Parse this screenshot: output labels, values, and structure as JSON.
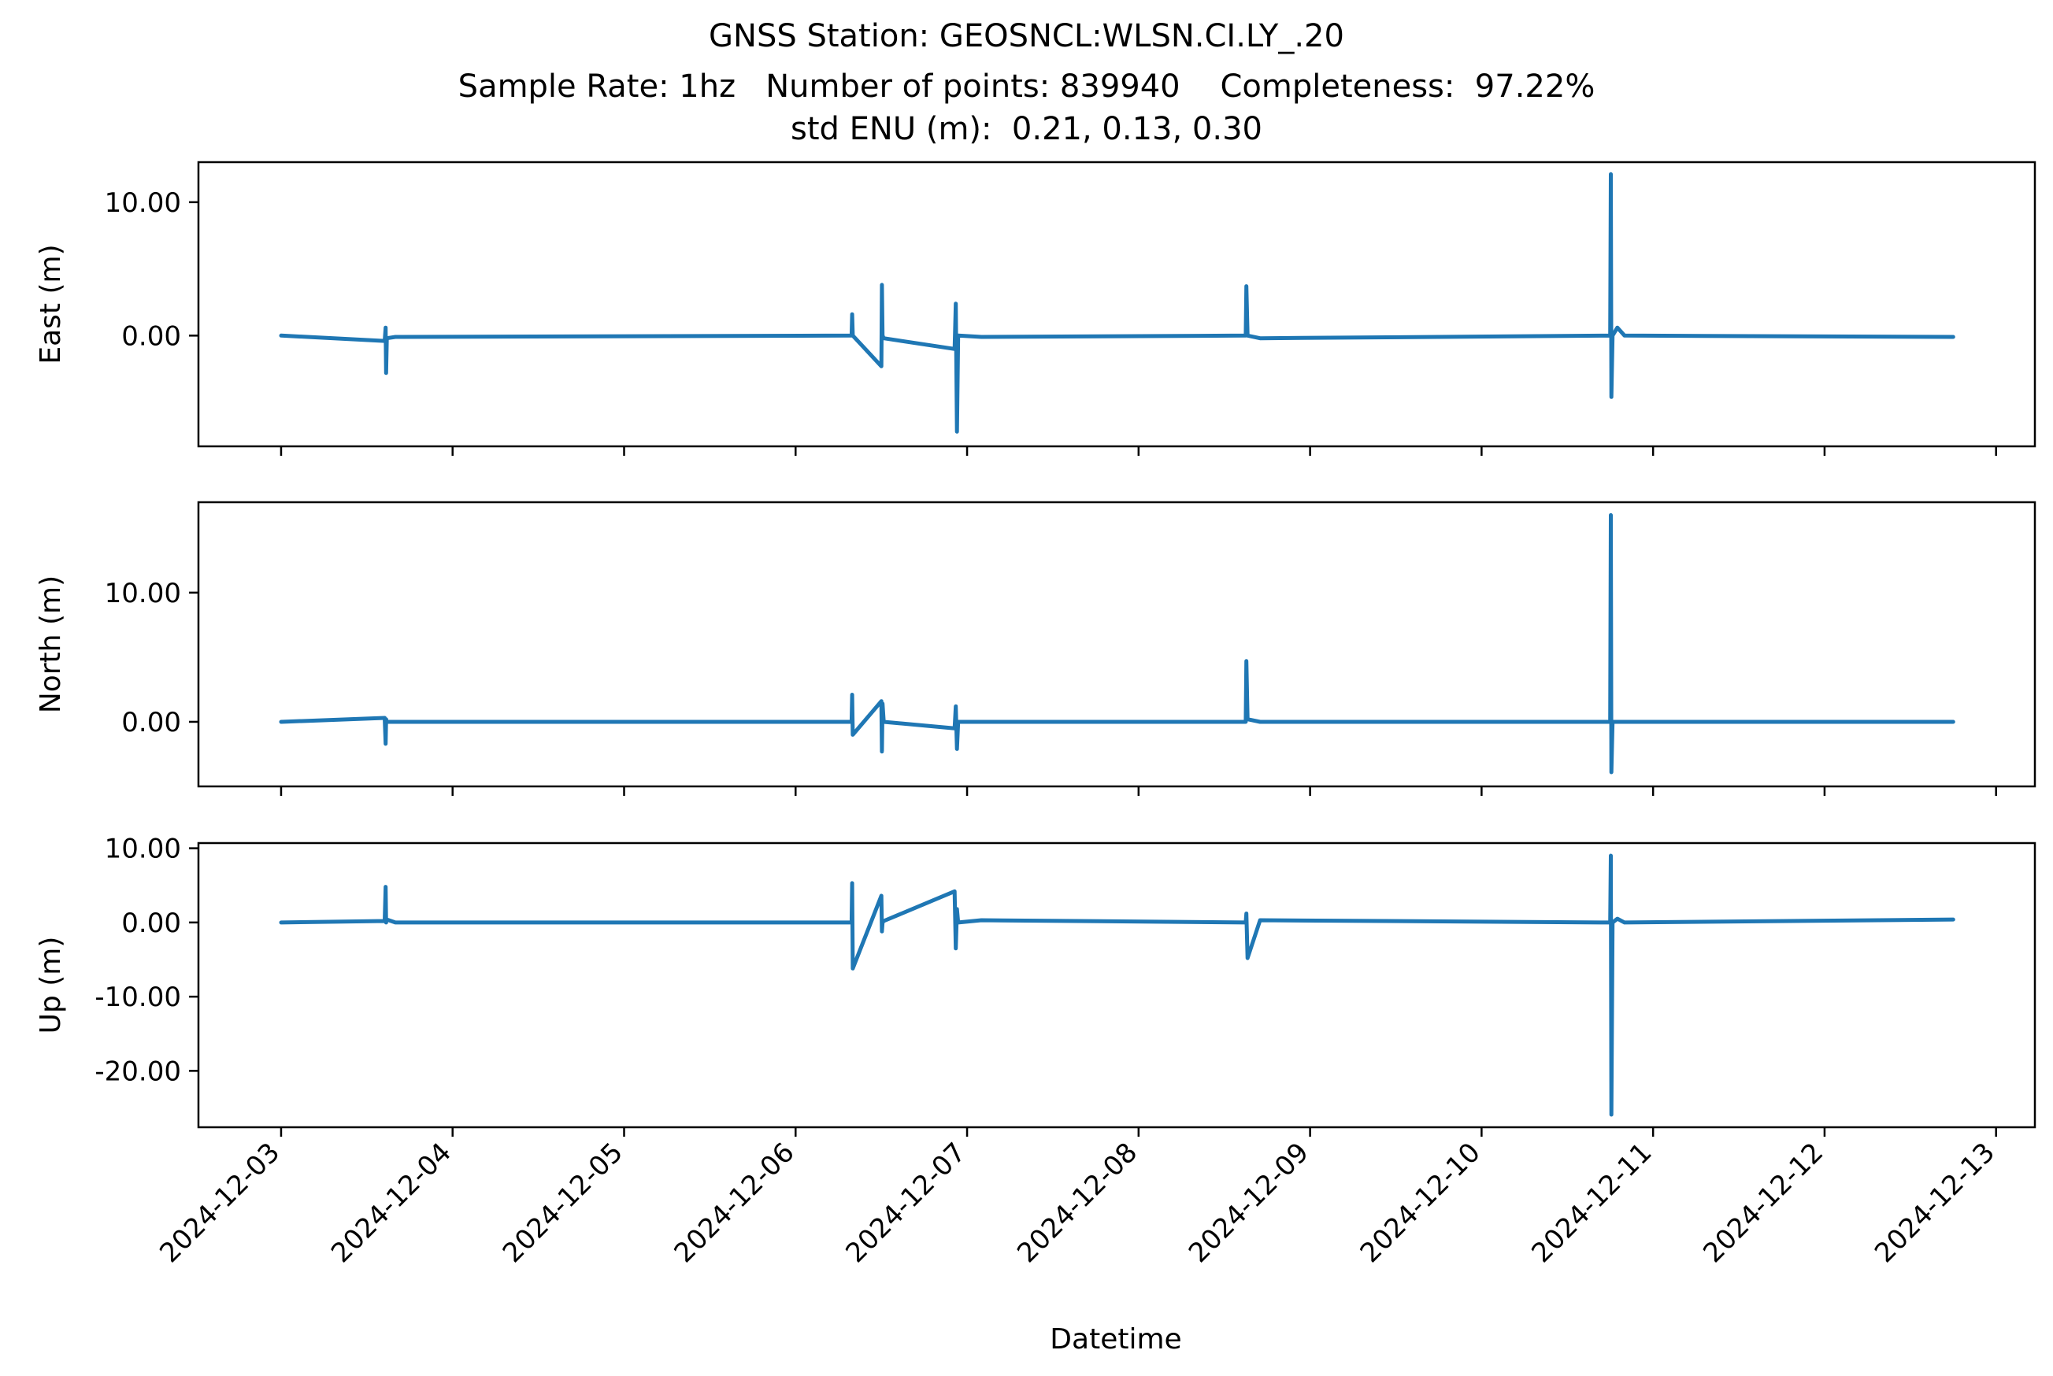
{
  "figure": {
    "title_line1": "GNSS Station: GEOSNCL:WLSN.CI.LY_.20",
    "title_line2": "Sample Rate: 1hz   Number of points: 839940    Completeness:  97.22%",
    "title_line3": "std ENU (m):  0.21, 0.13, 0.30",
    "xlabel": "Datetime",
    "line_color": "#1f77b4"
  },
  "chart_data": [
    {
      "type": "line",
      "ylabel": "East (m)",
      "xlim": [
        "2024-12-02 12:26",
        "2024-12-13 05:26"
      ],
      "ylim": [
        -8.3,
        13.0
      ],
      "yticks": [
        0,
        10
      ],
      "ytick_labels": [
        "0.00",
        "10.00"
      ],
      "grid": false,
      "series": [
        {
          "x": [
            "2024-12-03 00:00",
            "2024-12-03 14:30",
            "2024-12-03 14:38",
            "2024-12-03 14:42",
            "2024-12-03 14:48",
            "2024-12-03 16:00",
            "2024-12-06 07:50",
            "2024-12-06 07:55",
            "2024-12-06 08:00",
            "2024-12-06 12:00",
            "2024-12-06 12:05",
            "2024-12-06 12:10",
            "2024-12-06 12:20",
            "2024-12-06 22:15",
            "2024-12-06 22:25",
            "2024-12-06 22:35",
            "2024-12-06 22:45",
            "2024-12-07 02:00",
            "2024-12-08 15:00",
            "2024-12-08 15:05",
            "2024-12-08 15:15",
            "2024-12-08 17:00",
            "2024-12-10 18:00",
            "2024-12-10 18:05",
            "2024-12-10 18:10",
            "2024-12-10 18:20",
            "2024-12-10 19:00",
            "2024-12-10 20:00",
            "2024-12-12 18:00"
          ],
          "y": [
            0.0,
            -0.4,
            0.6,
            -2.8,
            -0.2,
            -0.1,
            0.0,
            1.6,
            0.0,
            -2.3,
            3.8,
            0.0,
            -0.2,
            -1.0,
            2.4,
            -7.2,
            0.0,
            -0.1,
            0.0,
            3.7,
            0.0,
            -0.2,
            0.0,
            12.1,
            -4.6,
            0.0,
            0.6,
            0.0,
            -0.1
          ]
        }
      ]
    },
    {
      "type": "line",
      "ylabel": "North (m)",
      "xlim": [
        "2024-12-02 12:26",
        "2024-12-13 05:26"
      ],
      "ylim": [
        -5.0,
        17.0
      ],
      "yticks": [
        0,
        10
      ],
      "ytick_labels": [
        "0.00",
        "10.00"
      ],
      "grid": false,
      "series": [
        {
          "x": [
            "2024-12-03 00:00",
            "2024-12-03 14:30",
            "2024-12-03 14:38",
            "2024-12-03 14:42",
            "2024-12-03 14:48",
            "2024-12-03 16:00",
            "2024-12-06 07:50",
            "2024-12-06 07:55",
            "2024-12-06 08:00",
            "2024-12-06 12:00",
            "2024-12-06 12:05",
            "2024-12-06 12:10",
            "2024-12-06 12:20",
            "2024-12-06 22:15",
            "2024-12-06 22:25",
            "2024-12-06 22:35",
            "2024-12-06 22:45",
            "2024-12-07 02:00",
            "2024-12-08 15:00",
            "2024-12-08 15:05",
            "2024-12-08 15:15",
            "2024-12-08 17:00",
            "2024-12-10 18:00",
            "2024-12-10 18:05",
            "2024-12-10 18:10",
            "2024-12-10 18:20",
            "2024-12-10 19:00",
            "2024-12-10 20:00",
            "2024-12-12 18:00"
          ],
          "y": [
            0.0,
            0.3,
            -1.7,
            0.2,
            0.0,
            0.0,
            0.0,
            2.1,
            -1.0,
            1.6,
            -2.3,
            1.4,
            0.0,
            -0.5,
            1.2,
            -2.1,
            0.0,
            0.0,
            0.0,
            4.7,
            0.2,
            0.0,
            0.0,
            16.0,
            -3.9,
            0.0,
            0.0,
            0.0,
            0.0
          ]
        }
      ]
    },
    {
      "type": "line",
      "ylabel": "Up (m)",
      "xlim": [
        "2024-12-02 12:26",
        "2024-12-13 05:26"
      ],
      "ylim": [
        -27.6,
        10.7
      ],
      "yticks": [
        10,
        0,
        -10,
        -20
      ],
      "ytick_labels": [
        "10.00",
        "0.00",
        "-10.00",
        "-20.00"
      ],
      "grid": false,
      "series": [
        {
          "x": [
            "2024-12-03 00:00",
            "2024-12-03 14:30",
            "2024-12-03 14:38",
            "2024-12-03 14:42",
            "2024-12-03 14:48",
            "2024-12-03 16:00",
            "2024-12-06 07:50",
            "2024-12-06 07:55",
            "2024-12-06 08:00",
            "2024-12-06 12:00",
            "2024-12-06 12:05",
            "2024-12-06 12:10",
            "2024-12-06 12:20",
            "2024-12-06 22:15",
            "2024-12-06 22:25",
            "2024-12-06 22:35",
            "2024-12-06 22:45",
            "2024-12-07 02:00",
            "2024-12-08 15:00",
            "2024-12-08 15:05",
            "2024-12-08 15:15",
            "2024-12-08 17:00",
            "2024-12-10 18:00",
            "2024-12-10 18:05",
            "2024-12-10 18:10",
            "2024-12-10 18:20",
            "2024-12-10 19:00",
            "2024-12-10 20:00",
            "2024-12-12 18:00"
          ],
          "y": [
            0.0,
            0.2,
            4.8,
            0.0,
            0.4,
            0.0,
            0.0,
            5.3,
            -6.2,
            3.6,
            -1.2,
            0.0,
            0.2,
            4.2,
            -3.5,
            1.8,
            0.0,
            0.3,
            0.0,
            1.2,
            -4.8,
            0.3,
            0.0,
            9.0,
            -25.9,
            0.0,
            0.5,
            0.0,
            0.4
          ]
        }
      ]
    }
  ],
  "x_axis": {
    "ticks": [
      "2024-12-03",
      "2024-12-04",
      "2024-12-05",
      "2024-12-06",
      "2024-12-07",
      "2024-12-08",
      "2024-12-09",
      "2024-12-10",
      "2024-12-11",
      "2024-12-12",
      "2024-12-13"
    ]
  }
}
